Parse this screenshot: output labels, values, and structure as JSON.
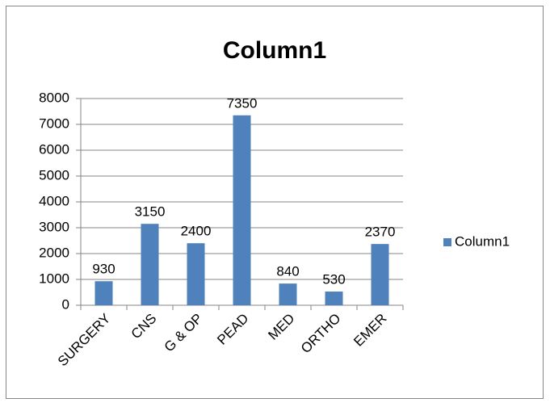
{
  "chart_data": {
    "type": "bar",
    "title": "Column1",
    "categories": [
      "SURGERY",
      "CNS",
      "G & OP",
      "PEAD",
      "MED",
      "ORTHO",
      "EMER"
    ],
    "series": [
      {
        "name": "Column1",
        "color": "#4f81bd",
        "values": [
          930,
          3150,
          2400,
          7350,
          840,
          530,
          2370
        ]
      }
    ],
    "ylim": [
      0,
      8000
    ],
    "yticks": [
      0,
      1000,
      2000,
      3000,
      4000,
      5000,
      6000,
      7000,
      8000
    ],
    "grid": true,
    "legend": "right"
  }
}
